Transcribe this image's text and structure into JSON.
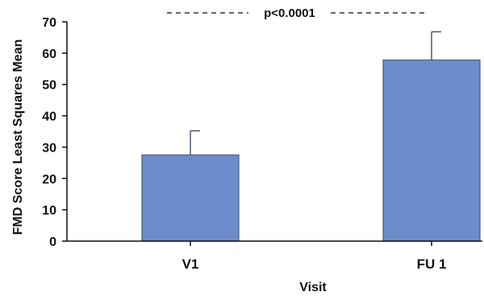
{
  "chart_data": {
    "type": "bar",
    "categories": [
      "V1",
      "FU 1"
    ],
    "values": [
      27.5,
      57.8
    ],
    "error_upper": [
      35.2,
      66.8
    ],
    "xlabel": "Visit",
    "ylabel": "FMD Score Least Squares Mean",
    "ylim": [
      0,
      70
    ],
    "yticks": [
      0,
      10,
      20,
      30,
      40,
      50,
      60,
      70
    ],
    "grid": false,
    "bar_color": "#6C8CCB",
    "bar_edge_color": "#4A5A7A",
    "annotation": "p<0.0001"
  }
}
